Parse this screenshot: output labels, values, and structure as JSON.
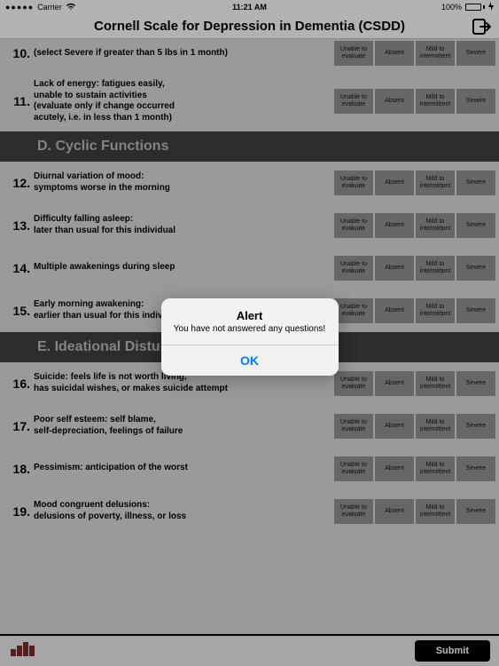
{
  "status": {
    "carrier": "Carrier",
    "wifi_icon": "wifi",
    "time": "11:21 AM",
    "battery_pct": "100%"
  },
  "header": {
    "title": "Cornell Scale for Depression in Dementia (CSDD)"
  },
  "options": {
    "labels": [
      "Unable to evaluate",
      "Absent",
      "Mild to intermittent",
      "Severe"
    ]
  },
  "questions": [
    {
      "num": "10.",
      "text": "(select Severe if greater than 5 lbs in 1 month)"
    },
    {
      "num": "11.",
      "text": "Lack of energy: fatigues easily,\nunable to sustain activities\n(evaluate only if change occurred\nacutely, i.e. in less than 1 month)"
    }
  ],
  "sectionD": {
    "title": "D. Cyclic Functions"
  },
  "questionsD": [
    {
      "num": "12.",
      "text": "Diurnal variation of mood:\nsymptoms worse in the morning"
    },
    {
      "num": "13.",
      "text": "Difficulty falling asleep:\nlater than usual for this individual"
    },
    {
      "num": "14.",
      "text": "Multiple awakenings during sleep"
    },
    {
      "num": "15.",
      "text": "Early morning awakening:\nearlier than usual for this individual"
    }
  ],
  "sectionE": {
    "title": "E. Ideational Disturbance"
  },
  "questionsE": [
    {
      "num": "16.",
      "text": "Suicide: feels life is not worth living,\nhas suicidal wishes, or makes suicide attempt"
    },
    {
      "num": "17.",
      "text": "Poor self esteem: self blame,\nself-depreciation, feelings of failure"
    },
    {
      "num": "18.",
      "text": "Pessimism: anticipation of the worst"
    },
    {
      "num": "19.",
      "text": "Mood congruent delusions:\ndelusions of poverty, illness, or loss"
    }
  ],
  "footer": {
    "submit": "Submit"
  },
  "alert": {
    "title": "Alert",
    "message": "You have not answered any questions!",
    "ok": "OK"
  },
  "colors": {
    "bg": "#d6d6d6",
    "header_bg": "#f7f7f7",
    "section_bg": "#3d3d3d",
    "section_fg": "#b8b8b8",
    "option_bg": "#8f8f8f",
    "submit_bg": "#000000",
    "alert_accent": "#007aff",
    "logo": "#7a2a2a"
  }
}
